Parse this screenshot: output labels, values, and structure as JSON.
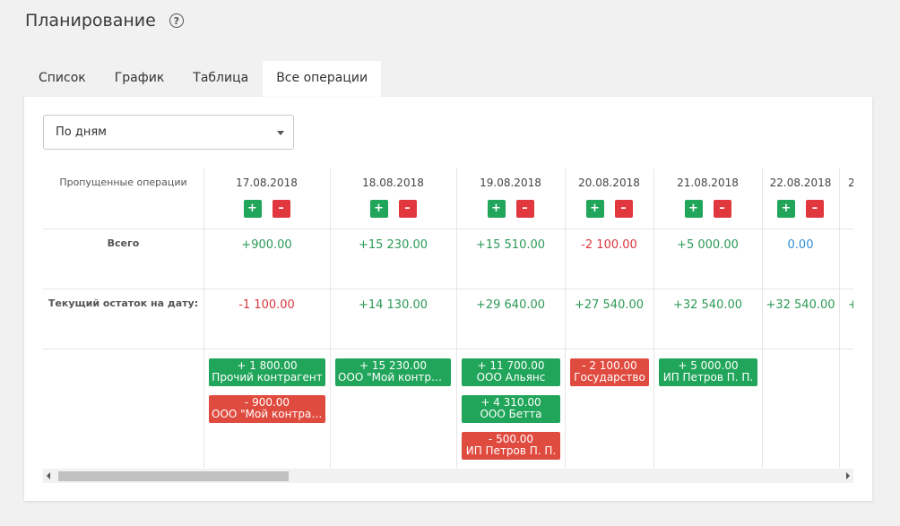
{
  "header": {
    "title": "Планирование",
    "help_icon": "?"
  },
  "tabs": [
    {
      "label": "Список",
      "active": false
    },
    {
      "label": "График",
      "active": false
    },
    {
      "label": "Таблица",
      "active": false
    },
    {
      "label": "Все операции",
      "active": true
    }
  ],
  "filter": {
    "selected": "По дням"
  },
  "row_labels": {
    "missed": "Пропущенные операции",
    "total": "Всего",
    "balance": "Текущий остаток на дату:"
  },
  "columns": [
    {
      "date": "17.08.2018",
      "total": "+900.00",
      "balance": "-1 100.00",
      "ops": [
        {
          "amount": "+ 1 800.00",
          "name": "Прочий контрагент",
          "type": "income"
        },
        {
          "amount": "- 900.00",
          "name": "ООО \"Мой контрагент\"",
          "type": "expense"
        }
      ]
    },
    {
      "date": "18.08.2018",
      "total": "+15 230.00",
      "balance": "+14 130.00",
      "ops": [
        {
          "amount": "+ 15 230.00",
          "name": "ООО \"Мой контрагент\"",
          "type": "income"
        }
      ]
    },
    {
      "date": "19.08.2018",
      "total": "+15 510.00",
      "balance": "+29 640.00",
      "ops": [
        {
          "amount": "+ 11 700.00",
          "name": "ООО Альянс",
          "type": "income"
        },
        {
          "amount": "+ 4 310.00",
          "name": "ООО Бетта",
          "type": "income"
        },
        {
          "amount": "- 500.00",
          "name": "ИП Петров П. П.",
          "type": "expense"
        }
      ]
    },
    {
      "date": "20.08.2018",
      "total": "-2 100.00",
      "balance": "+27 540.00",
      "ops": [
        {
          "amount": "- 2 100.00",
          "name": "Государство",
          "type": "expense"
        }
      ]
    },
    {
      "date": "21.08.2018",
      "total": "+5 000.00",
      "balance": "+32 540.00",
      "ops": [
        {
          "amount": "+ 5 000.00",
          "name": "ИП Петров П. П.",
          "type": "income"
        }
      ]
    },
    {
      "date": "22.08.2018",
      "total": "0.00",
      "balance": "+32 540.00",
      "ops": []
    },
    {
      "date": "2",
      "total": "",
      "balance": "+",
      "ops": []
    }
  ],
  "colors": {
    "income": "#21a55a",
    "expense": "#e04b3f",
    "zero": "#2f8ed8"
  }
}
